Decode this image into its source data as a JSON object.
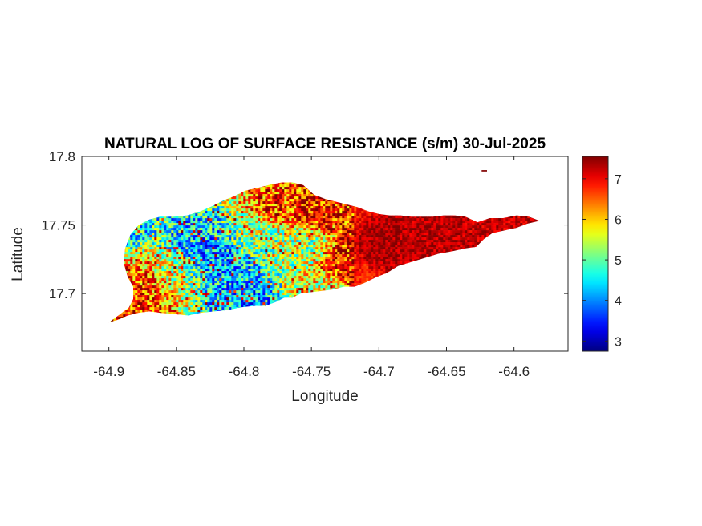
{
  "chart_data": {
    "type": "heatmap",
    "title": "NATURAL LOG OF SURFACE RESISTANCE (s/m) 30-Jul-2025",
    "xlabel": "Longitude",
    "ylabel": "Latitude",
    "xlim": [
      -64.92,
      -64.56
    ],
    "ylim": [
      17.658,
      17.8
    ],
    "xticks": [
      -64.9,
      -64.85,
      -64.8,
      -64.75,
      -64.7,
      -64.65,
      -64.6
    ],
    "xtick_labels": [
      "-64.9",
      "-64.85",
      "-64.8",
      "-64.75",
      "-64.7",
      "-64.65",
      "-64.6"
    ],
    "yticks": [
      17.7,
      17.75,
      17.8
    ],
    "ytick_labels": [
      "17.7",
      "17.75",
      "17.8"
    ],
    "colorbar": {
      "colormap": "jet",
      "range": [
        2.75,
        7.55
      ],
      "ticks": [
        3,
        4,
        5,
        6,
        7
      ],
      "tick_labels": [
        "3",
        "4",
        "5",
        "6",
        "7"
      ],
      "location": "right"
    },
    "grid": false,
    "island_outline": [
      [
        -64.9,
        17.679
      ],
      [
        -64.893,
        17.684
      ],
      [
        -64.885,
        17.69
      ],
      [
        -64.882,
        17.696
      ],
      [
        -64.882,
        17.705
      ],
      [
        -64.886,
        17.712
      ],
      [
        -64.889,
        17.722
      ],
      [
        -64.888,
        17.733
      ],
      [
        -64.884,
        17.743
      ],
      [
        -64.878,
        17.75
      ],
      [
        -64.87,
        17.754
      ],
      [
        -64.862,
        17.756
      ],
      [
        -64.852,
        17.756
      ],
      [
        -64.842,
        17.757
      ],
      [
        -64.832,
        17.76
      ],
      [
        -64.823,
        17.764
      ],
      [
        -64.815,
        17.768
      ],
      [
        -64.807,
        17.771
      ],
      [
        -64.799,
        17.775
      ],
      [
        -64.79,
        17.777
      ],
      [
        -64.782,
        17.779
      ],
      [
        -64.772,
        17.781
      ],
      [
        -64.764,
        17.781
      ],
      [
        -64.756,
        17.779
      ],
      [
        -64.748,
        17.772
      ],
      [
        -64.74,
        17.769
      ],
      [
        -64.732,
        17.767
      ],
      [
        -64.724,
        17.765
      ],
      [
        -64.716,
        17.763
      ],
      [
        -64.708,
        17.76
      ],
      [
        -64.7,
        17.758
      ],
      [
        -64.692,
        17.757
      ],
      [
        -64.684,
        17.757
      ],
      [
        -64.676,
        17.756
      ],
      [
        -64.668,
        17.756
      ],
      [
        -64.66,
        17.756
      ],
      [
        -64.652,
        17.757
      ],
      [
        -64.644,
        17.757
      ],
      [
        -64.636,
        17.756
      ],
      [
        -64.627,
        17.752
      ],
      [
        -64.618,
        17.755
      ],
      [
        -64.608,
        17.755
      ],
      [
        -64.598,
        17.757
      ],
      [
        -64.589,
        17.756
      ],
      [
        -64.581,
        17.753
      ],
      [
        -64.59,
        17.751
      ],
      [
        -64.598,
        17.748
      ],
      [
        -64.607,
        17.746
      ],
      [
        -64.616,
        17.744
      ],
      [
        -64.622,
        17.74
      ],
      [
        -64.628,
        17.734
      ],
      [
        -64.636,
        17.733
      ],
      [
        -64.645,
        17.731
      ],
      [
        -64.656,
        17.729
      ],
      [
        -64.666,
        17.726
      ],
      [
        -64.676,
        17.723
      ],
      [
        -64.686,
        17.72
      ],
      [
        -64.694,
        17.715
      ],
      [
        -64.702,
        17.712
      ],
      [
        -64.71,
        17.708
      ],
      [
        -64.718,
        17.705
      ],
      [
        -64.726,
        17.705
      ],
      [
        -64.734,
        17.703
      ],
      [
        -64.742,
        17.702
      ],
      [
        -64.75,
        17.701
      ],
      [
        -64.758,
        17.7
      ],
      [
        -64.764,
        17.697
      ],
      [
        -64.77,
        17.697
      ],
      [
        -64.776,
        17.694
      ],
      [
        -64.784,
        17.691
      ],
      [
        -64.792,
        17.691
      ],
      [
        -64.802,
        17.69
      ],
      [
        -64.812,
        17.688
      ],
      [
        -64.822,
        17.687
      ],
      [
        -64.832,
        17.686
      ],
      [
        -64.841,
        17.684
      ],
      [
        -64.852,
        17.685
      ],
      [
        -64.862,
        17.686
      ],
      [
        -64.87,
        17.687
      ],
      [
        -64.878,
        17.686
      ],
      [
        -64.886,
        17.684
      ],
      [
        -64.893,
        17.681
      ]
    ],
    "islet": [
      [
        -64.624,
        17.79
      ],
      [
        -64.62,
        17.79
      ],
      [
        -64.62,
        17.789
      ],
      [
        -64.624,
        17.789
      ]
    ],
    "value_field": {
      "description_points": [
        {
          "lon": -64.885,
          "lat": 17.75,
          "value": 4.6
        },
        {
          "lon": -64.875,
          "lat": 17.712,
          "value": 6.5
        },
        {
          "lon": -64.885,
          "lat": 17.695,
          "value": 6.8
        },
        {
          "lon": -64.86,
          "lat": 17.72,
          "value": 5.6
        },
        {
          "lon": -64.84,
          "lat": 17.74,
          "value": 4.4
        },
        {
          "lon": -64.825,
          "lat": 17.73,
          "value": 4.1
        },
        {
          "lon": -64.81,
          "lat": 17.72,
          "value": 4.3
        },
        {
          "lon": -64.8,
          "lat": 17.7,
          "value": 4.2
        },
        {
          "lon": -64.79,
          "lat": 17.74,
          "value": 5.2
        },
        {
          "lon": -64.775,
          "lat": 17.765,
          "value": 6.6
        },
        {
          "lon": -64.76,
          "lat": 17.735,
          "value": 5.3
        },
        {
          "lon": -64.75,
          "lat": 17.76,
          "value": 6.8
        },
        {
          "lon": -64.745,
          "lat": 17.705,
          "value": 5.7
        },
        {
          "lon": -64.725,
          "lat": 17.72,
          "value": 6.9
        },
        {
          "lon": -64.7,
          "lat": 17.735,
          "value": 7.4
        },
        {
          "lon": -64.66,
          "lat": 17.745,
          "value": 7.3
        },
        {
          "lon": -64.61,
          "lat": 17.75,
          "value": 7.2
        }
      ]
    }
  }
}
